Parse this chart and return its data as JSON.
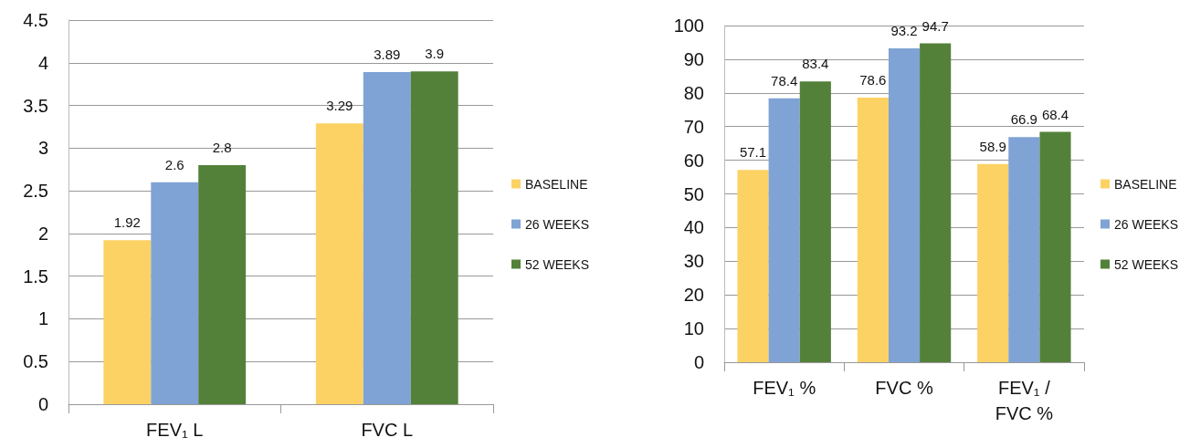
{
  "chart_data": [
    {
      "type": "bar",
      "categories": [
        "FEV₁ L",
        "FVC L"
      ],
      "series": [
        {
          "name": "BASELINE",
          "color": "#fdd264",
          "values": [
            1.92,
            3.29
          ]
        },
        {
          "name": "26 WEEKS",
          "color": "#7fa3d4",
          "values": [
            2.6,
            3.89
          ]
        },
        {
          "name": "52 WEEKS",
          "color": "#538139",
          "values": [
            2.8,
            3.9
          ]
        }
      ],
      "ylim": [
        0,
        4.5
      ],
      "yticks": [
        0,
        0.5,
        1,
        1.5,
        2,
        2.5,
        3,
        3.5,
        4,
        4.5
      ],
      "grid": "y",
      "legend": "right",
      "data_labels": true
    },
    {
      "type": "bar",
      "categories": [
        "FEV₁ %",
        "FVC %",
        "FEV₁ /FVC %"
      ],
      "series": [
        {
          "name": "BASELINE",
          "color": "#fdd264",
          "values": [
            57.1,
            78.6,
            58.9
          ]
        },
        {
          "name": "26 WEEKS",
          "color": "#7fa3d4",
          "values": [
            78.4,
            93.2,
            66.9
          ]
        },
        {
          "name": "52 WEEKS",
          "color": "#538139",
          "values": [
            83.4,
            94.7,
            68.4
          ]
        }
      ],
      "ylim": [
        0,
        100
      ],
      "yticks": [
        0,
        10,
        20,
        30,
        40,
        50,
        60,
        70,
        80,
        90,
        100
      ],
      "grid": "y",
      "legend": "right",
      "data_labels": true
    }
  ]
}
